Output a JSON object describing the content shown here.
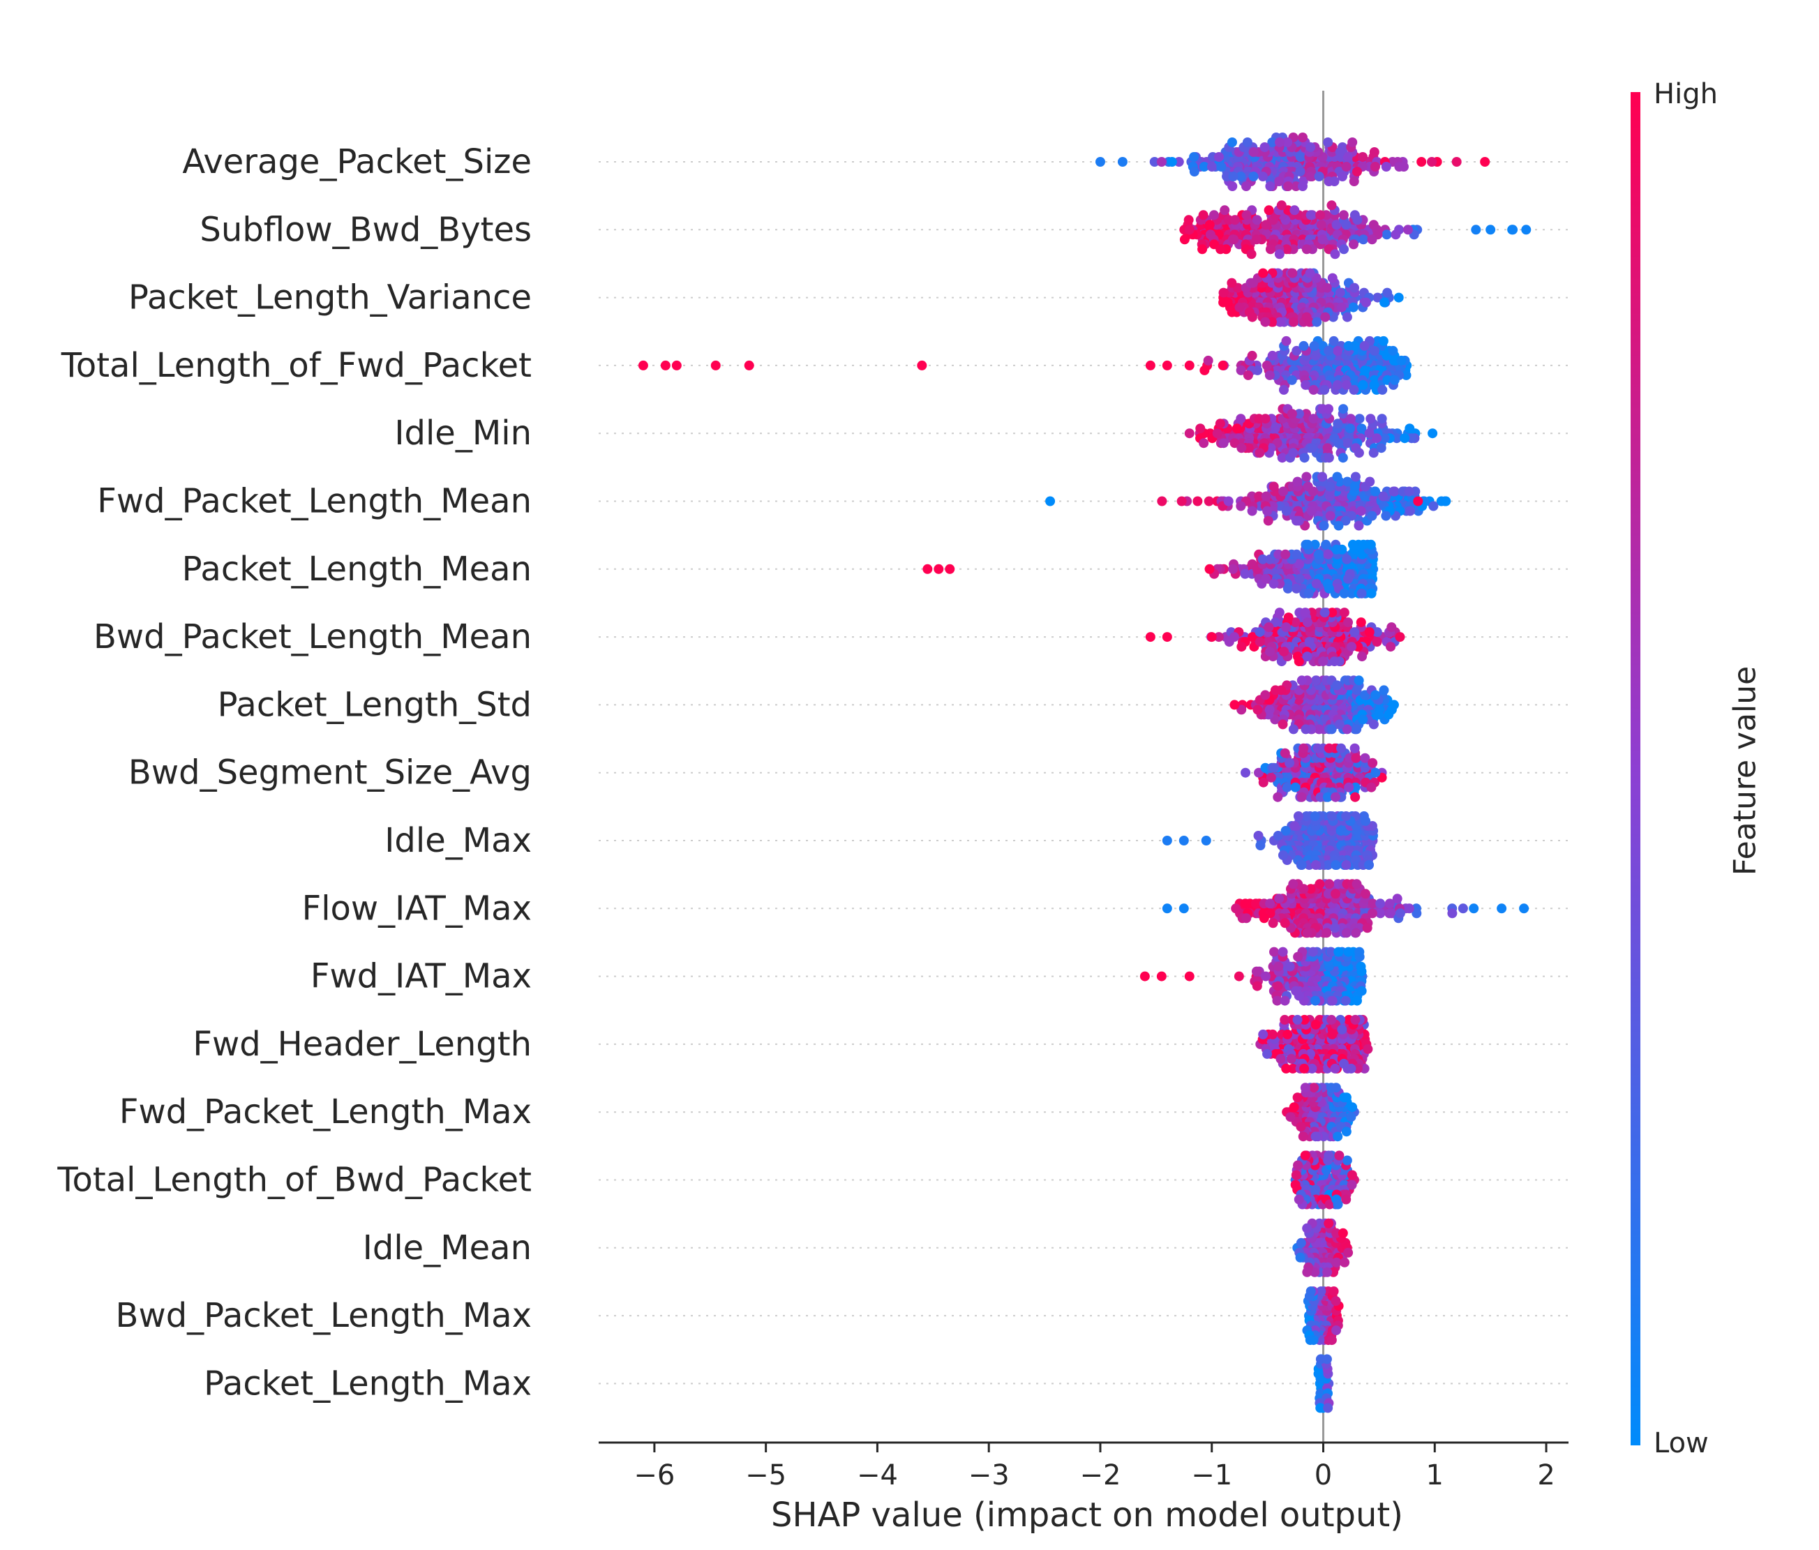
{
  "chart_data": {
    "type": "scatter",
    "subtype": "shap-beeswarm",
    "title": "",
    "xlabel": "SHAP value (impact on model output)",
    "ylabel": "",
    "xlim": [
      -6.5,
      2.2
    ],
    "xticks": [
      -6,
      -5,
      -4,
      -3,
      -2,
      -1,
      0,
      1,
      2
    ],
    "xtick_labels": [
      "−6",
      "−5",
      "−4",
      "−3",
      "−2",
      "−1",
      "0",
      "1",
      "2"
    ],
    "grid": false,
    "colorbar": {
      "title": "Feature value",
      "high_label": "High",
      "low_label": "Low",
      "high_color": "#ff0051",
      "low_color": "#008bfb"
    },
    "features": [
      {
        "name": "Average_Packet_Size",
        "min": -2.0,
        "max": 1.5,
        "center": -0.3,
        "spread": 0.5,
        "trend": "high_right",
        "outliers": [
          [
            -2.0,
            0.1
          ],
          [
            -1.8,
            0.1
          ],
          [
            -1.45,
            0.6
          ],
          [
            1.45,
            1.0
          ]
        ]
      },
      {
        "name": "Subflow_Bwd_Bytes",
        "min": -1.25,
        "max": 1.85,
        "center": -0.4,
        "spread": 0.55,
        "trend": "high_left",
        "outliers": [
          [
            1.5,
            0.05
          ],
          [
            1.7,
            0.05
          ],
          [
            1.82,
            0.05
          ],
          [
            -1.2,
            0.9
          ]
        ]
      },
      {
        "name": "Packet_Length_Variance",
        "min": -0.9,
        "max": 0.75,
        "center": -0.3,
        "spread": 0.35,
        "trend": "high_left",
        "outliers": []
      },
      {
        "name": "Total_Length_of_Fwd_Packet",
        "min": -1.6,
        "max": 0.75,
        "center": 0.1,
        "spread": 0.4,
        "trend": "high_left",
        "outliers": [
          [
            -6.1,
            1.0
          ],
          [
            -5.9,
            1.0
          ],
          [
            -5.8,
            1.0
          ],
          [
            -5.45,
            1.0
          ],
          [
            -5.15,
            1.0
          ],
          [
            -3.6,
            1.0
          ],
          [
            -1.55,
            1.0
          ],
          [
            -1.4,
            1.0
          ],
          [
            -1.2,
            1.0
          ],
          [
            -0.9,
            1.0
          ]
        ]
      },
      {
        "name": "Idle_Min",
        "min": -1.2,
        "max": 1.0,
        "center": -0.2,
        "spread": 0.45,
        "trend": "high_left",
        "outliers": [
          [
            -1.2,
            0.8
          ],
          [
            -0.95,
            0.8
          ]
        ]
      },
      {
        "name": "Fwd_Packet_Length_Mean",
        "min": -1.55,
        "max": 1.15,
        "center": 0.05,
        "spread": 0.45,
        "trend": "high_left",
        "outliers": [
          [
            -2.45,
            0.0
          ],
          [
            1.1,
            0.0
          ],
          [
            0.85,
            1.0
          ]
        ]
      },
      {
        "name": "Packet_Length_Mean",
        "min": -1.3,
        "max": 0.45,
        "center": 0.05,
        "spread": 0.4,
        "trend": "high_left",
        "outliers": [
          [
            -3.55,
            1.0
          ],
          [
            -3.45,
            1.0
          ],
          [
            -3.35,
            1.0
          ]
        ]
      },
      {
        "name": "Bwd_Packet_Length_Mean",
        "min": -1.55,
        "max": 0.7,
        "center": -0.1,
        "spread": 0.35,
        "trend": "high_mixed",
        "outliers": [
          [
            -1.55,
            1.0
          ],
          [
            -1.4,
            1.0
          ],
          [
            -1.0,
            1.0
          ]
        ]
      },
      {
        "name": "Packet_Length_Std",
        "min": -0.8,
        "max": 0.65,
        "center": 0.0,
        "spread": 0.3,
        "trend": "high_left",
        "outliers": []
      },
      {
        "name": "Bwd_Segment_Size_Avg",
        "min": -0.8,
        "max": 0.55,
        "center": 0.0,
        "spread": 0.25,
        "trend": "mixed",
        "outliers": []
      },
      {
        "name": "Idle_Max",
        "min": -0.8,
        "max": 0.45,
        "center": 0.05,
        "spread": 0.25,
        "trend": "low",
        "outliers": [
          [
            -1.4,
            0.1
          ],
          [
            -1.25,
            0.1
          ],
          [
            -1.05,
            0.1
          ]
        ]
      },
      {
        "name": "Flow_IAT_Max",
        "min": -0.85,
        "max": 1.85,
        "center": 0.0,
        "spread": 0.35,
        "trend": "high_left",
        "outliers": [
          [
            -1.4,
            0.05
          ],
          [
            -1.25,
            0.05
          ],
          [
            1.35,
            0.05
          ],
          [
            1.6,
            0.05
          ],
          [
            1.8,
            0.05
          ]
        ]
      },
      {
        "name": "Fwd_IAT_Max",
        "min": -0.85,
        "max": 0.35,
        "center": 0.0,
        "spread": 0.3,
        "trend": "high_left",
        "outliers": [
          [
            -1.6,
            1.0
          ],
          [
            -1.45,
            1.0
          ],
          [
            -1.2,
            1.0
          ]
        ]
      },
      {
        "name": "Fwd_Header_Length",
        "min": -0.85,
        "max": 0.4,
        "center": 0.0,
        "spread": 0.25,
        "trend": "high_mixed",
        "outliers": []
      },
      {
        "name": "Fwd_Packet_Length_Max",
        "min": -0.35,
        "max": 0.3,
        "center": -0.02,
        "spread": 0.12,
        "trend": "high_left",
        "outliers": []
      },
      {
        "name": "Total_Length_of_Bwd_Packet",
        "min": -0.25,
        "max": 0.3,
        "center": -0.02,
        "spread": 0.1,
        "trend": "mixed",
        "outliers": []
      },
      {
        "name": "Idle_Mean",
        "min": -0.5,
        "max": 0.3,
        "center": 0.0,
        "spread": 0.08,
        "trend": "high_right",
        "outliers": []
      },
      {
        "name": "Bwd_Packet_Length_Max",
        "min": -0.2,
        "max": 0.2,
        "center": 0.0,
        "spread": 0.06,
        "trend": "high_right",
        "outliers": []
      },
      {
        "name": "Packet_Length_Max",
        "min": -0.05,
        "max": 0.3,
        "center": 0.0,
        "spread": 0.02,
        "trend": "high_right",
        "outliers": []
      }
    ]
  }
}
